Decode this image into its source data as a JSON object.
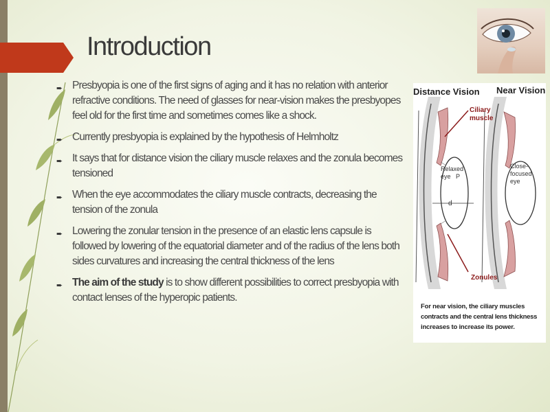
{
  "slide": {
    "title": "Introduction"
  },
  "bullets": [
    {
      "text": "Presbyopia is one of the first signs of aging and it has no relation with anterior refractive conditions. The need of glasses for near-vision makes the presbyopes feel old for the first time and sometimes comes like a shock."
    },
    {
      "text": " Currently presbyopia is explained by the hypothesis of Helmholtz"
    },
    {
      "text": "It says that for distance vision the ciliary muscle relaxes and the zonula becomes tensioned"
    },
    {
      "text": "When the eye accommodates the ciliary muscle contracts, decreasing the tension of the zonula"
    },
    {
      "text": "Lowering the zonular tension in the presence of an elastic lens capsule is followed by lowering of the equatorial diameter and of the radius of the lens both sides curvatures and increasing the central thickness of the lens"
    },
    {
      "bold": "The aim of the study",
      "text": " is to show different possibilities to correct presbyopia with contact lenses of the hyperopic patients."
    }
  ],
  "diagram": {
    "distance_label": "Distance Vision",
    "near_label": "Near Vision",
    "ciliary_label_1": "Ciliary",
    "ciliary_label_2": "muscle",
    "relaxed_1": "Relaxed",
    "relaxed_2": "eye",
    "p_label": "P",
    "d_label": "d",
    "close_1": "Close-",
    "close_2": "focused",
    "close_3": "eye",
    "zonules_label": "Zonules",
    "caption_1": "For near vision, the ciliary muscles",
    "caption_2": "contracts and the central lens thickness",
    "caption_3": "increases to increase its power."
  },
  "colors": {
    "banner": "#c0391b",
    "muscle": "#d8a0a0",
    "arrow": "#8b1a1a"
  },
  "icons": {
    "bullet": "arrow-bullet-icon",
    "photo": "eye-contact-lens-photo"
  }
}
